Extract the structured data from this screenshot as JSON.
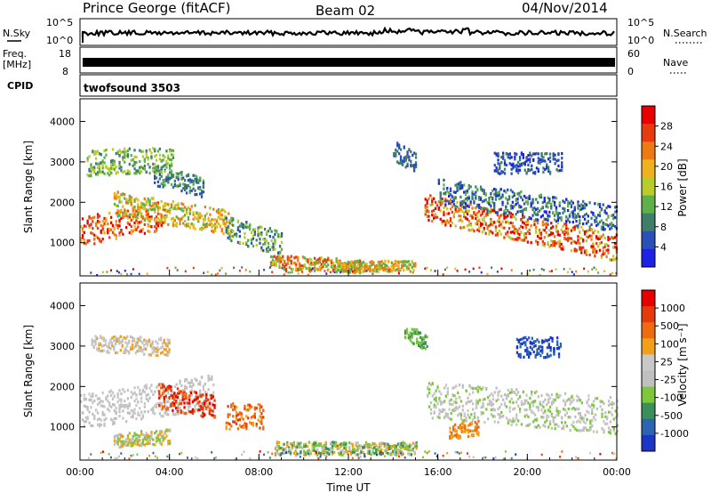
{
  "header": {
    "station": "Prince George (fitACF)",
    "beam": "Beam 02",
    "date": "04/Nov/2014"
  },
  "noise_panel": {
    "left_label": "N.Sky",
    "left_ticks": [
      "10^5",
      "10^0"
    ],
    "right_label": "N.Search",
    "right_ticks": [
      "10^5",
      "10^0"
    ]
  },
  "freq_panel": {
    "left_label_line1": "Freq.",
    "left_label_line2": "[MHz]",
    "left_ticks": [
      "18",
      "8"
    ],
    "right_label": "Nave",
    "right_ticks": [
      "60",
      "0"
    ]
  },
  "cpid_panel": {
    "label": "CPID",
    "program": "twofsound 3503"
  },
  "colors": {
    "power": [
      "#1c22e6",
      "#2a4fb8",
      "#3f7f6a",
      "#5fb04a",
      "#b8cc2a",
      "#f0b21c",
      "#f07a12",
      "#e83a0e",
      "#e60000"
    ],
    "velocity": [
      "#1c34c8",
      "#2c64b4",
      "#3a8f5a",
      "#7cc83a",
      "#c0c0c0",
      "#c8c8c8",
      "#f2a01a",
      "#f06a10",
      "#e63a0c",
      "#e60000"
    ]
  },
  "chart_data": [
    {
      "type": "heatmap",
      "name": "power",
      "ylabel": "Slant Range [km]",
      "ylim": [
        180,
        4560
      ],
      "y_ticks": [
        1000,
        2000,
        3000,
        4000
      ],
      "xlim": [
        0,
        24
      ],
      "colorbar_label": "Power [dB]",
      "colorbar_ticks": [
        "4",
        "8",
        "12",
        "16",
        "20",
        "24",
        "28"
      ],
      "colorbar_range": [
        0,
        32
      ]
    },
    {
      "type": "heatmap",
      "name": "velocity",
      "ylabel": "Slant Range [km]",
      "ylim": [
        180,
        4560
      ],
      "y_ticks": [
        1000,
        2000,
        3000,
        4000
      ],
      "xlim": [
        0,
        24
      ],
      "xlabel": "Time UT",
      "x_ticks": [
        "00:00",
        "04:00",
        "08:00",
        "12:00",
        "16:00",
        "20:00",
        "00:00"
      ],
      "colorbar_label": "Velocity [m s⁻¹]",
      "colorbar_ticks": [
        "1000",
        "500",
        "100",
        "25",
        "-25",
        "-100",
        "-500",
        "-1000"
      ]
    }
  ]
}
